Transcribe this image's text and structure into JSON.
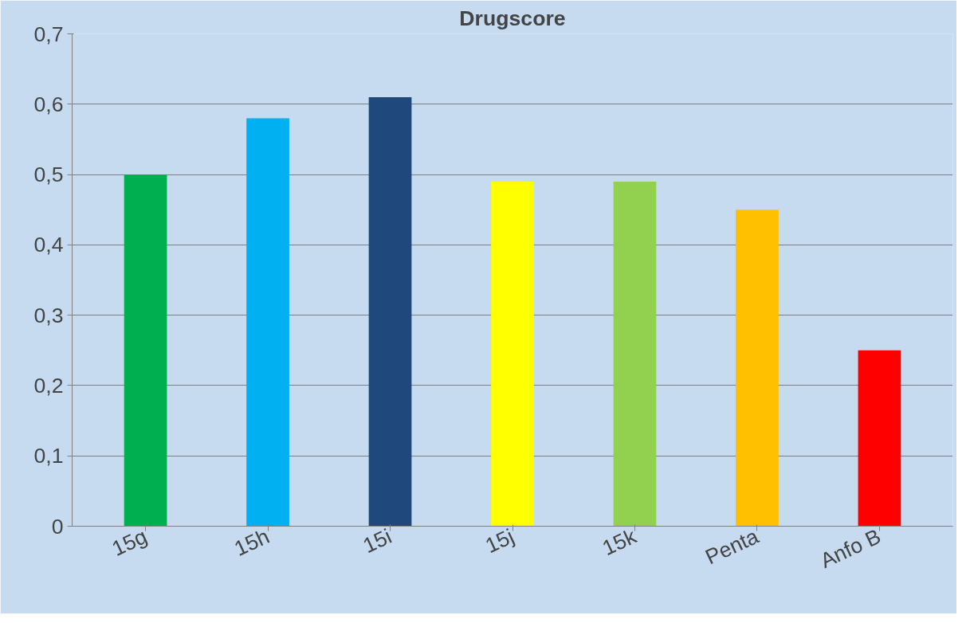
{
  "chart_data": {
    "type": "bar",
    "title": "Drugscore",
    "categories": [
      "15g",
      "15h",
      "15i",
      "15j",
      "15k",
      "Penta",
      "Anfo B"
    ],
    "values": [
      0.5,
      0.58,
      0.61,
      0.49,
      0.49,
      0.45,
      0.25
    ],
    "colors": [
      "#00b050",
      "#00b0f0",
      "#1f497d",
      "#ffff00",
      "#92d050",
      "#ffc000",
      "#ff0000"
    ],
    "ylim": [
      0,
      0.7
    ],
    "yticks": [
      {
        "value": 0,
        "label": "0"
      },
      {
        "value": 0.1,
        "label": "0,1"
      },
      {
        "value": 0.2,
        "label": "0,2"
      },
      {
        "value": 0.3,
        "label": "0,3"
      },
      {
        "value": 0.4,
        "label": "0,4"
      },
      {
        "value": 0.5,
        "label": "0,5"
      },
      {
        "value": 0.6,
        "label": "0,6"
      },
      {
        "value": 0.7,
        "label": "0,7"
      }
    ],
    "grid": "y"
  }
}
